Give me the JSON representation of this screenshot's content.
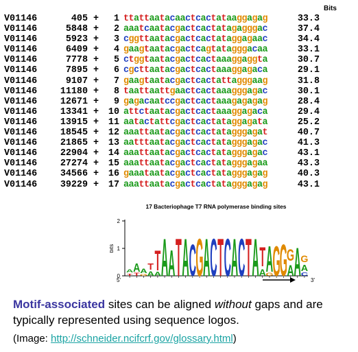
{
  "alignment": {
    "bits_header": "Bits",
    "rows": [
      {
        "acc": "V01146",
        "pos": "405",
        "strand": "+",
        "index": "1",
        "seq": "ttattaatacaactcactataaggagag",
        "bits": "33.3"
      },
      {
        "acc": "V01146",
        "pos": "5848",
        "strand": "+",
        "index": "2",
        "seq": "aaatcaatacgactcactatagagggac",
        "bits": "37.4"
      },
      {
        "acc": "V01146",
        "pos": "5923",
        "strand": "+",
        "index": "3",
        "seq": "cggttaatacgactcactataggagaac",
        "bits": "34.4"
      },
      {
        "acc": "V01146",
        "pos": "6409",
        "strand": "+",
        "index": "4",
        "seq": "gaagtaatacgactcagtatagggacaa",
        "bits": "33.1"
      },
      {
        "acc": "V01146",
        "pos": "7778",
        "strand": "+",
        "index": "5",
        "seq": "ctggtaatacgactcactaaaggaggta",
        "bits": "30.7"
      },
      {
        "acc": "V01146",
        "pos": "7895",
        "strand": "+",
        "index": "6",
        "seq": "cgcttaatacgactcactaaaggagaca",
        "bits": "29.1"
      },
      {
        "acc": "V01146",
        "pos": "9107",
        "strand": "+",
        "index": "7",
        "seq": "gaagtaatacgactcactattagggaag",
        "bits": "31.8"
      },
      {
        "acc": "V01146",
        "pos": "11180",
        "strand": "+",
        "index": "8",
        "seq": "taattaattgaactcactaaagggagac",
        "bits": "30.1"
      },
      {
        "acc": "V01146",
        "pos": "12671",
        "strand": "+",
        "index": "9",
        "seq": "gagacaatccgactcactaaagagagag",
        "bits": "28.4"
      },
      {
        "acc": "V01146",
        "pos": "13341",
        "strand": "+",
        "index": "10",
        "seq": "attctaatacgactcactaaaggagaca",
        "bits": "29.4"
      },
      {
        "acc": "V01146",
        "pos": "13915",
        "strand": "+",
        "index": "11",
        "seq": "aatactattcgactcactataggagata",
        "bits": "25.2"
      },
      {
        "acc": "V01146",
        "pos": "18545",
        "strand": "+",
        "index": "12",
        "seq": "aaattaatacgactcactatagggagat",
        "bits": "40.7"
      },
      {
        "acc": "V01146",
        "pos": "21865",
        "strand": "+",
        "index": "13",
        "seq": "aatttaatacgactcactatagggagac",
        "bits": "41.3"
      },
      {
        "acc": "V01146",
        "pos": "22904",
        "strand": "+",
        "index": "14",
        "seq": "aaattaatacgactcactatagggagac",
        "bits": "43.1"
      },
      {
        "acc": "V01146",
        "pos": "27274",
        "strand": "+",
        "index": "15",
        "seq": "aaattaatacgactcactatagggagaa",
        "bits": "43.3"
      },
      {
        "acc": "V01146",
        "pos": "34566",
        "strand": "+",
        "index": "16",
        "seq": "gaaataatacgactcactatagggagag",
        "bits": "40.3"
      },
      {
        "acc": "V01146",
        "pos": "39229",
        "strand": "+",
        "index": "17",
        "seq": "aaattaatacgactcactatagggagag",
        "bits": "43.1"
      }
    ]
  },
  "logo": {
    "title": "17 Bacteriophage T7 RNA polymerase binding sites",
    "ylabel": "bits",
    "yticks": [
      "2",
      "1",
      "0"
    ],
    "end_5": "5'",
    "end_3": "3'",
    "colors": {
      "A": "#1a9a1a",
      "C": "#1f3fbf",
      "G": "#e08a00",
      "T": "#d41f1f"
    },
    "columns": [
      [
        [
          "A",
          0.15
        ],
        [
          "T",
          0.12
        ]
      ],
      [
        [
          "A",
          0.45
        ],
        [
          "T",
          0.15
        ]
      ],
      [
        [
          "A",
          0.22
        ],
        [
          "G",
          0.1
        ]
      ],
      [
        [
          "T",
          0.32
        ],
        [
          "A",
          0.22
        ]
      ],
      [
        [
          "T",
          1.05
        ],
        [
          "A",
          0.2
        ]
      ],
      [
        [
          "A",
          1.95
        ]
      ],
      [
        [
          "A",
          1.35
        ]
      ],
      [
        [
          "T",
          1.95
        ]
      ],
      [
        [
          "A",
          1.95
        ]
      ],
      [
        [
          "C",
          1.65
        ]
      ],
      [
        [
          "G",
          1.95
        ]
      ],
      [
        [
          "A",
          1.95
        ]
      ],
      [
        [
          "C",
          1.95
        ]
      ],
      [
        [
          "T",
          1.95
        ]
      ],
      [
        [
          "C",
          1.95
        ]
      ],
      [
        [
          "A",
          1.95
        ]
      ],
      [
        [
          "C",
          1.95
        ]
      ],
      [
        [
          "T",
          1.95
        ]
      ],
      [
        [
          "A",
          1.95
        ]
      ],
      [
        [
          "T",
          1.0
        ],
        [
          "A",
          0.35
        ]
      ],
      [
        [
          "A",
          1.35
        ],
        [
          "G",
          0.15
        ]
      ],
      [
        [
          "G",
          1.55
        ]
      ],
      [
        [
          "G",
          1.65
        ]
      ],
      [
        [
          "G",
          0.6
        ],
        [
          "A",
          0.55
        ]
      ],
      [
        [
          "A",
          1.45
        ]
      ],
      [
        [
          "G",
          0.35
        ],
        [
          "A",
          0.32
        ],
        [
          "C",
          0.18
        ]
      ]
    ]
  },
  "caption": {
    "keyword": "Motif-associated",
    "part1": " sites can be aligned ",
    "italic": "without",
    "part2": " gaps and are typically represented using sequence logos.",
    "credit_prefix": "(Image: ",
    "credit_link": "http://schneider.ncifcrf.gov/glossary.html",
    "credit_suffix": ")"
  }
}
